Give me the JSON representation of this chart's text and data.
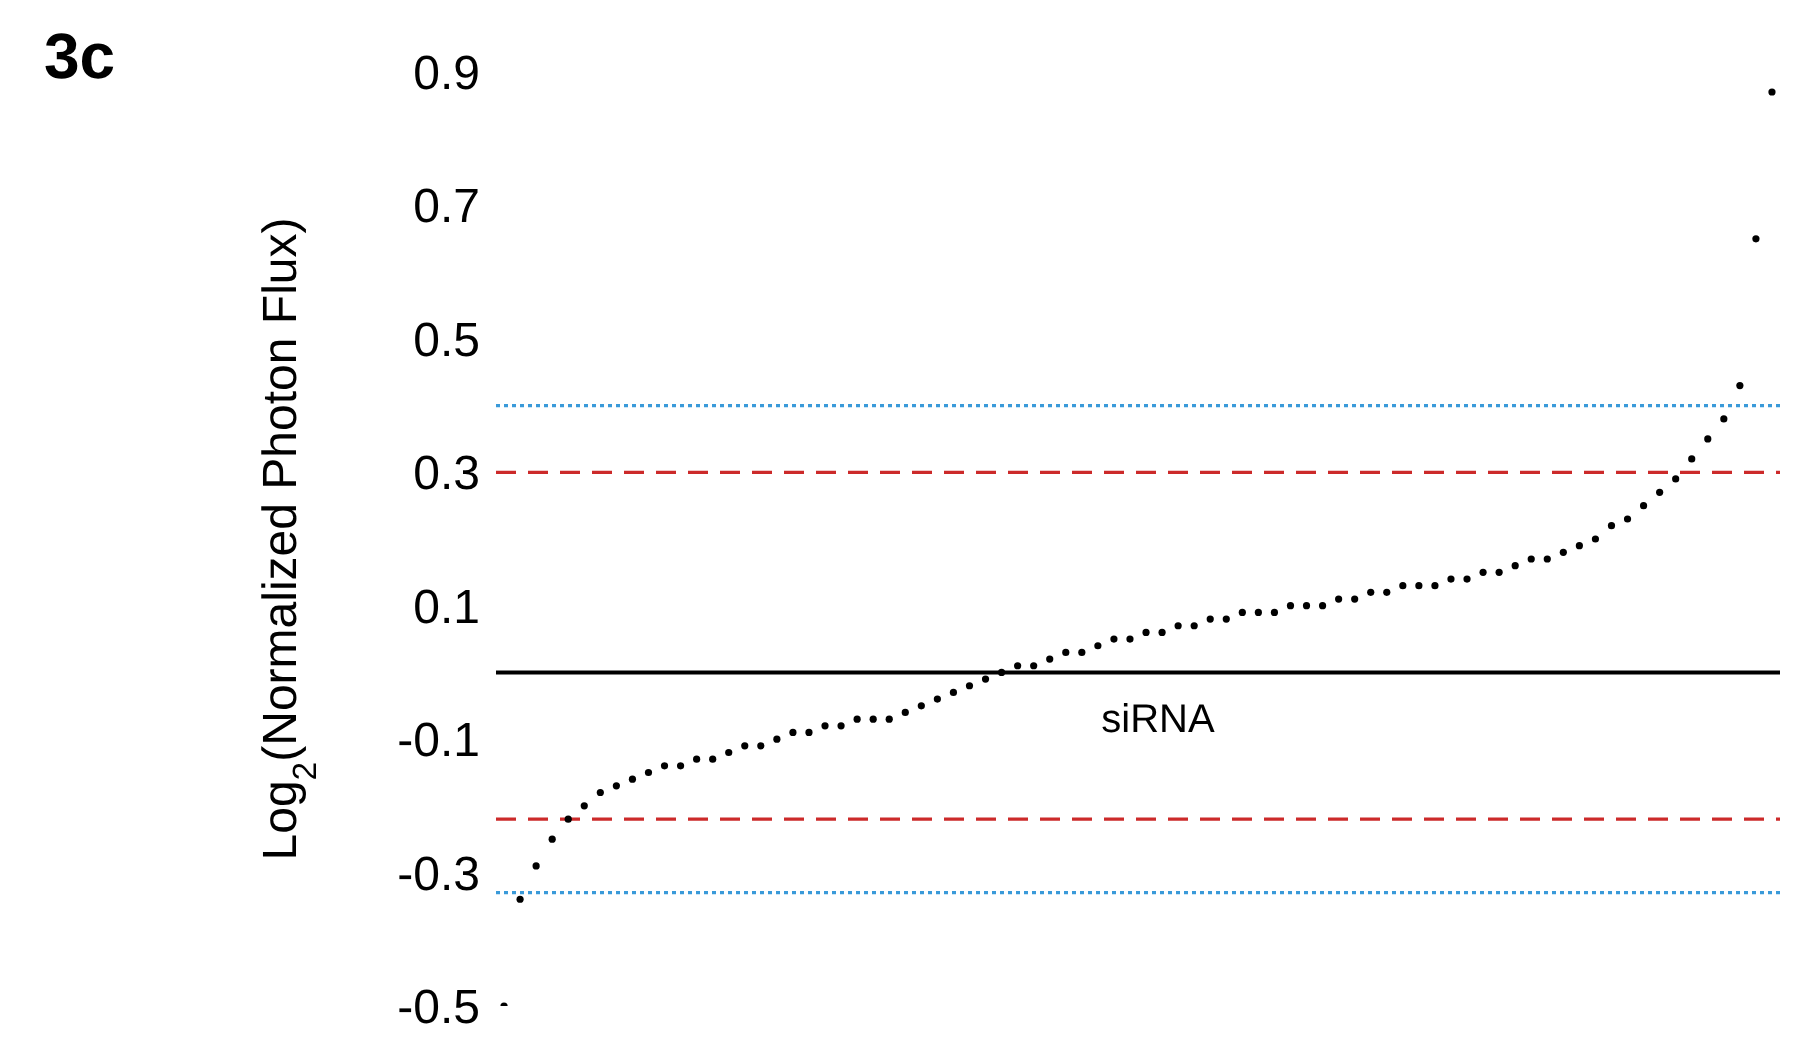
{
  "chart_data": {
    "type": "scatter",
    "xlabel": "siRNA",
    "ylabel": "Log$_{2}$(Normalized Photon Flux)",
    "annotations": [
      "3c"
    ],
    "categories": [
      null,
      null,
      null,
      null,
      null,
      null,
      null,
      null,
      null,
      null,
      null,
      null,
      null,
      null,
      null,
      null,
      null,
      null,
      null,
      null,
      null,
      null,
      null,
      null,
      null,
      null,
      null,
      null,
      null,
      null,
      null,
      null,
      null,
      null,
      null,
      null,
      null,
      null,
      null,
      null,
      null,
      null,
      null,
      null,
      null,
      null,
      null,
      null,
      null,
      null,
      null,
      null,
      null,
      null,
      null,
      null,
      null,
      null,
      null,
      null,
      null,
      null,
      null,
      null,
      null,
      null,
      null,
      null,
      null,
      null,
      null,
      null,
      null,
      null,
      null,
      null,
      null,
      null,
      null,
      null
    ],
    "series": [
      {
        "color": "#000000",
        "values": [
          -0.5,
          -0.34,
          -0.29,
          -0.25,
          -0.22,
          -0.2,
          -0.18,
          -0.17,
          -0.16,
          -0.15,
          -0.14,
          -0.14,
          -0.13,
          -0.13,
          -0.12,
          -0.11,
          -0.11,
          -0.1,
          -0.09,
          -0.09,
          -0.08,
          -0.08,
          -0.07,
          -0.07,
          -0.07,
          -0.06,
          -0.05,
          -0.04,
          -0.03,
          -0.02,
          -0.01,
          0.0,
          0.01,
          0.01,
          0.02,
          0.03,
          0.03,
          0.04,
          0.05,
          0.05,
          0.06,
          0.06,
          0.07,
          0.07,
          0.08,
          0.08,
          0.09,
          0.09,
          0.09,
          0.1,
          0.1,
          0.1,
          0.11,
          0.11,
          0.12,
          0.12,
          0.13,
          0.13,
          0.13,
          0.14,
          0.14,
          0.15,
          0.15,
          0.16,
          0.17,
          0.17,
          0.18,
          0.19,
          0.2,
          0.22,
          0.23,
          0.25,
          0.27,
          0.29,
          0.32,
          0.35,
          0.38,
          0.43,
          0.65,
          0.87
        ]
      }
    ],
    "ylim": [
      -0.5,
      0.9
    ],
    "yticks": [
      -0.5,
      -0.3,
      -0.1,
      0.1,
      0.3,
      0.5,
      0.7,
      0.9
    ],
    "ref_lines": [
      {
        "axis": "y",
        "value": 0,
        "color": "#000000",
        "line_style": "solid"
      },
      {
        "axis": "y",
        "value": 0.4,
        "color": "#3a9ad9",
        "line_style": "dotted"
      },
      {
        "axis": "y",
        "value": 0.3,
        "color": "#cc2a2a",
        "line_style": "dashed"
      },
      {
        "axis": "y",
        "value": -0.22,
        "color": "#cc2a2a",
        "line_style": "dashed"
      },
      {
        "axis": "y",
        "value": -0.33,
        "color": "#3a9ad9",
        "line_style": "dotted"
      }
    ],
    "marker": "circle",
    "grid": false,
    "legend": false,
    "tick_labels": "y"
  }
}
